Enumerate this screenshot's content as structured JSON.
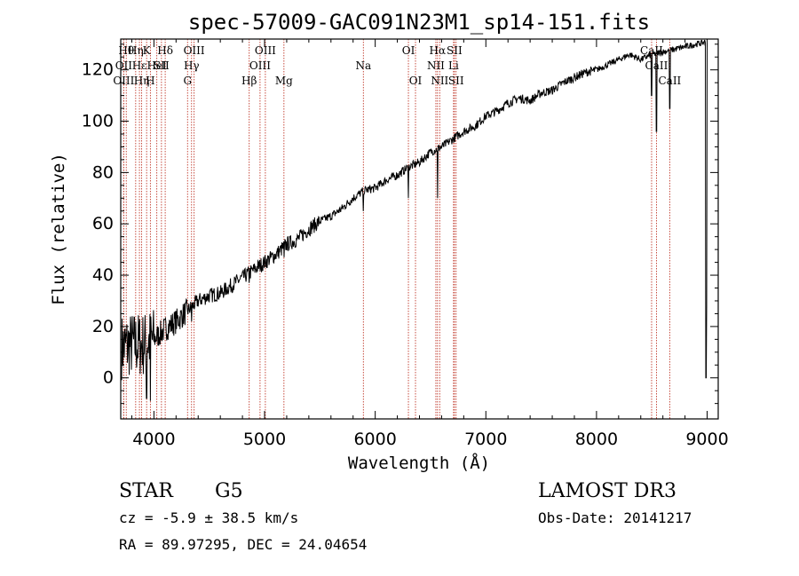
{
  "chart_data": {
    "type": "line",
    "title": "spec-57009-GAC091N23M1_sp14-151.fits",
    "xlabel": "Wavelength (Å)",
    "ylabel": "Flux (relative)",
    "xlim": [
      3700,
      9100
    ],
    "ylim": [
      -16,
      132
    ],
    "xticks": [
      4000,
      5000,
      6000,
      7000,
      8000,
      9000
    ],
    "yticks": [
      0,
      20,
      40,
      60,
      80,
      100,
      120
    ],
    "series": [
      {
        "name": "spectrum",
        "anchors": [
          [
            3700,
            12
          ],
          [
            3800,
            13
          ],
          [
            3900,
            13
          ],
          [
            4000,
            15
          ],
          [
            4100,
            19
          ],
          [
            4200,
            22
          ],
          [
            4300,
            26
          ],
          [
            4400,
            30
          ],
          [
            4500,
            32
          ],
          [
            4600,
            33
          ],
          [
            4700,
            36
          ],
          [
            4800,
            39
          ],
          [
            4900,
            42
          ],
          [
            5000,
            45
          ],
          [
            5100,
            48
          ],
          [
            5200,
            52
          ],
          [
            5300,
            54
          ],
          [
            5400,
            58
          ],
          [
            5500,
            61
          ],
          [
            5600,
            63
          ],
          [
            5700,
            66
          ],
          [
            5800,
            70
          ],
          [
            5900,
            73
          ],
          [
            6000,
            74
          ],
          [
            6100,
            77
          ],
          [
            6200,
            79
          ],
          [
            6300,
            82
          ],
          [
            6400,
            84
          ],
          [
            6500,
            88
          ],
          [
            6600,
            90
          ],
          [
            6700,
            93
          ],
          [
            6800,
            96
          ],
          [
            6900,
            98
          ],
          [
            7000,
            102
          ],
          [
            7100,
            104
          ],
          [
            7200,
            107
          ],
          [
            7300,
            109
          ],
          [
            7400,
            108
          ],
          [
            7500,
            111
          ],
          [
            7600,
            112
          ],
          [
            7700,
            115
          ],
          [
            7800,
            117
          ],
          [
            7900,
            119
          ],
          [
            8000,
            120
          ],
          [
            8100,
            122
          ],
          [
            8200,
            124
          ],
          [
            8300,
            126
          ],
          [
            8400,
            124
          ],
          [
            8500,
            126
          ],
          [
            8600,
            127
          ],
          [
            8700,
            128
          ],
          [
            8800,
            129
          ],
          [
            8900,
            130
          ],
          [
            9000,
            131
          ]
        ],
        "features": [
          {
            "x": 3934,
            "y": -8
          },
          {
            "x": 3968,
            "y": -9
          },
          {
            "x": 4340,
            "y": 22
          },
          {
            "x": 4861,
            "y": 37
          },
          {
            "x": 5175,
            "y": 47
          },
          {
            "x": 5893,
            "y": 65
          },
          {
            "x": 6300,
            "y": 70
          },
          {
            "x": 6563,
            "y": 70
          },
          {
            "x": 8498,
            "y": 110
          },
          {
            "x": 8542,
            "y": 96
          },
          {
            "x": 8662,
            "y": 105
          },
          {
            "x": 8990,
            "y": 0
          },
          {
            "x": 8995,
            "y": 28
          }
        ]
      }
    ],
    "emission_lines": [
      {
        "x": 3750,
        "row": 1,
        "label": "Hθ"
      },
      {
        "x": 3727,
        "row": 2,
        "label": "OII"
      },
      {
        "x": 3727,
        "row": 3,
        "label": "OIII"
      },
      {
        "x": 3835,
        "row": 1,
        "label": "Hη"
      },
      {
        "x": 3869,
        "row": 2,
        "label": "Hε"
      },
      {
        "x": 3889,
        "row": 3,
        "label": "Hη"
      },
      {
        "x": 3934,
        "row": 1,
        "label": "K"
      },
      {
        "x": 3968,
        "row": 3,
        "label": "H"
      },
      {
        "x": 4026,
        "row": 2,
        "label": "HeI"
      },
      {
        "x": 4068,
        "row": 2,
        "label": "SII"
      },
      {
        "x": 4102,
        "row": 1,
        "label": "Hδ"
      },
      {
        "x": 4304,
        "row": 3,
        "label": "G"
      },
      {
        "x": 4340,
        "row": 2,
        "label": "Hγ"
      },
      {
        "x": 4363,
        "row": 1,
        "label": "OIII"
      },
      {
        "x": 4861,
        "row": 3,
        "label": "Hβ"
      },
      {
        "x": 4959,
        "row": 2,
        "label": "OIII"
      },
      {
        "x": 5007,
        "row": 1,
        "label": "OIII"
      },
      {
        "x": 5175,
        "row": 3,
        "label": "Mg"
      },
      {
        "x": 5893,
        "row": 2,
        "label": "Na"
      },
      {
        "x": 6300,
        "row": 1,
        "label": "OI"
      },
      {
        "x": 6364,
        "row": 3,
        "label": "OI"
      },
      {
        "x": 6548,
        "row": 2,
        "label": "NII"
      },
      {
        "x": 6563,
        "row": 1,
        "label": "Hα"
      },
      {
        "x": 6583,
        "row": 3,
        "label": "NII"
      },
      {
        "x": 6708,
        "row": 2,
        "label": "Li"
      },
      {
        "x": 6716,
        "row": 1,
        "label": "SII"
      },
      {
        "x": 6731,
        "row": 3,
        "label": "SII"
      },
      {
        "x": 8498,
        "row": 1,
        "label": "CaII"
      },
      {
        "x": 8542,
        "row": 2,
        "label": "CaII"
      },
      {
        "x": 8662,
        "row": 3,
        "label": "CaII"
      }
    ]
  },
  "info": {
    "object_class": "STAR",
    "subclass": "G5",
    "survey": "LAMOST DR3",
    "cz": "cz = -5.9 ± 38.5 km/s",
    "obs_date": "Obs-Date: 20141217",
    "coords": "RA =  89.97295, DEC =  24.04654"
  }
}
